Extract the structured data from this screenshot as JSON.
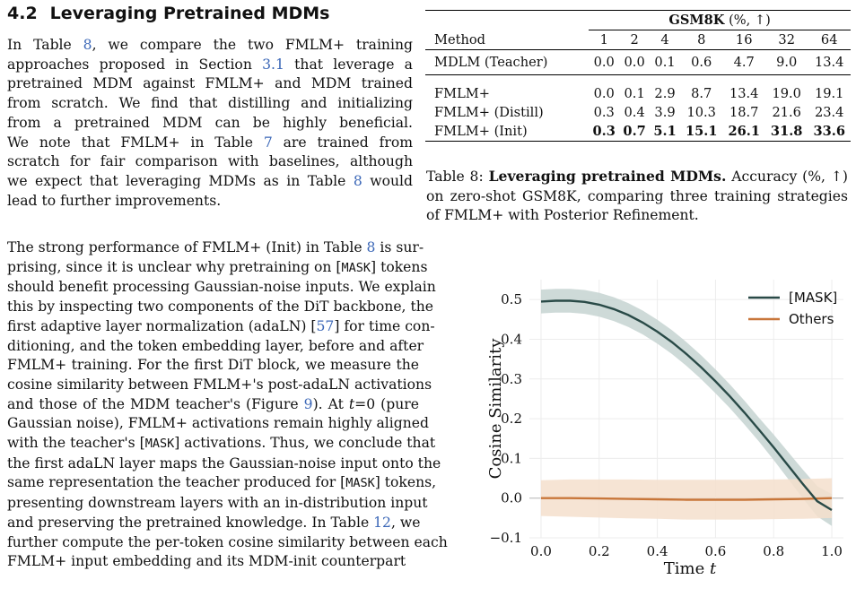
{
  "section": {
    "number": "4.2",
    "title": "Leveraging Pretrained MDMs"
  },
  "paragraph1": [
    {
      "parts": [
        {
          "t": "In Table "
        },
        {
          "t": "8",
          "link": true
        },
        {
          "t": ", we compare the two FMLM+ training"
        }
      ]
    },
    {
      "parts": [
        {
          "t": "approaches proposed in Section "
        },
        {
          "t": "3.1",
          "link": true
        },
        {
          "t": " that leverage a"
        }
      ]
    },
    {
      "parts": [
        {
          "t": "pretrained MDM against FMLM+ and MDM trained"
        }
      ]
    },
    {
      "parts": [
        {
          "t": "from scratch. We find that distilling and initializing"
        }
      ]
    },
    {
      "parts": [
        {
          "t": "from a pretrained MDM can be highly beneficial."
        }
      ]
    },
    {
      "parts": [
        {
          "t": "We note that FMLM+ in Table "
        },
        {
          "t": "7",
          "link": true
        },
        {
          "t": " are trained from"
        }
      ]
    },
    {
      "parts": [
        {
          "t": "scratch for fair comparison with baselines, although"
        }
      ]
    },
    {
      "parts": [
        {
          "t": "we expect that leveraging MDMs as in Table "
        },
        {
          "t": "8",
          "link": true
        },
        {
          "t": " would"
        }
      ]
    },
    {
      "parts": [
        {
          "t": "lead to further improvements."
        }
      ],
      "last": true
    }
  ],
  "paragraph2": [
    {
      "parts": [
        {
          "t": "The strong performance of FMLM+ (Init) in Table "
        },
        {
          "t": "8",
          "link": true
        },
        {
          "t": " is sur-"
        }
      ]
    },
    {
      "parts": [
        {
          "t": "prising, since it is unclear why pretraining on ["
        },
        {
          "t": "MASK",
          "mono": true
        },
        {
          "t": "] tokens"
        }
      ]
    },
    {
      "parts": [
        {
          "t": "should benefit processing Gaussian-noise inputs. We explain"
        }
      ]
    },
    {
      "parts": [
        {
          "t": "this by inspecting two components of the DiT backbone, the"
        }
      ]
    },
    {
      "parts": [
        {
          "t": "first adaptive layer normalization (adaLN) ["
        },
        {
          "t": "57",
          "link": true
        },
        {
          "t": "] for time con-"
        }
      ]
    },
    {
      "parts": [
        {
          "t": "ditioning, and the token embedding layer, before and after"
        }
      ]
    },
    {
      "parts": [
        {
          "t": "FMLM+ training. For the first DiT block, we measure the"
        }
      ]
    },
    {
      "parts": [
        {
          "t": "cosine similarity between FMLM+'s post-adaLN activations"
        }
      ]
    },
    {
      "parts": [
        {
          "t": "and those of the MDM teacher's (Figure "
        },
        {
          "t": "9",
          "link": true
        },
        {
          "t": "). At "
        },
        {
          "t": "t",
          "italic": true
        },
        {
          "t": "=0 (pure"
        }
      ]
    },
    {
      "parts": [
        {
          "t": "Gaussian noise), FMLM+ activations remain highly aligned"
        }
      ]
    },
    {
      "parts": [
        {
          "t": "with the teacher's ["
        },
        {
          "t": "MASK",
          "mono": true
        },
        {
          "t": "] activations. Thus, we conclude that"
        }
      ]
    },
    {
      "parts": [
        {
          "t": "the first adaLN layer maps the Gaussian-noise input onto the"
        }
      ]
    },
    {
      "parts": [
        {
          "t": "same representation the teacher produced for ["
        },
        {
          "t": "MASK",
          "mono": true
        },
        {
          "t": "] tokens,"
        }
      ]
    },
    {
      "parts": [
        {
          "t": "presenting downstream layers with an in-distribution input"
        }
      ]
    },
    {
      "parts": [
        {
          "t": "and preserving the pretrained knowledge. In Table "
        },
        {
          "t": "12",
          "link": true
        },
        {
          "t": ", we"
        }
      ]
    },
    {
      "parts": [
        {
          "t": "further compute the per-token cosine similarity between each"
        }
      ]
    },
    {
      "parts": [
        {
          "t": "FMLM+ input embedding and its MDM-init counterpart"
        }
      ],
      "last": true
    }
  ],
  "table": {
    "group_header": "GSM8K",
    "group_header_suffix": "(%, ↑)",
    "method_header": "Method",
    "columns": [
      "1",
      "2",
      "4",
      "8",
      "16",
      "32",
      "64"
    ],
    "teacher": {
      "method": "MDLM (Teacher)",
      "values": [
        "0.0",
        "0.0",
        "0.1",
        "0.6",
        "4.7",
        "9.0",
        "13.4"
      ]
    },
    "rows": [
      {
        "method": "FMLM+",
        "values": [
          "0.0",
          "0.1",
          "2.9",
          "8.7",
          "13.4",
          "19.0",
          "19.1"
        ],
        "bold": false
      },
      {
        "method": "FMLM+ (Distill)",
        "values": [
          "0.3",
          "0.4",
          "3.9",
          "10.3",
          "18.7",
          "21.6",
          "23.4"
        ],
        "bold": false
      },
      {
        "method": "FMLM+ (Init)",
        "values": [
          "0.3",
          "0.7",
          "5.1",
          "15.1",
          "26.1",
          "31.8",
          "33.6"
        ],
        "bold": true
      }
    ]
  },
  "caption": {
    "label": "Table 8:",
    "bold_title": "Leveraging pretrained MDMs.",
    "text": "Accuracy (%, ↑) on zero-shot GSM8K, comparing three training strategies of FMLM+ with Posterior Refinement."
  },
  "chart_data": {
    "type": "line",
    "xlabel": "Time",
    "xlabel_italic": "t",
    "ylabel": "Cosine Similarity",
    "xlim": [
      -0.04,
      1.04
    ],
    "ylim": [
      -0.1,
      0.55
    ],
    "xticks": [
      "0.0",
      "0.2",
      "0.4",
      "0.6",
      "0.8",
      "1.0"
    ],
    "yticks": [
      "−0.1",
      "0.0",
      "0.1",
      "0.2",
      "0.3",
      "0.4",
      "0.5"
    ],
    "grid": true,
    "legend_position": "top-right",
    "series": [
      {
        "name": "[MASK]",
        "color": "#294a47",
        "band_color": "#c5d3d1",
        "x": [
          0.0,
          0.05,
          0.1,
          0.15,
          0.2,
          0.25,
          0.3,
          0.35,
          0.4,
          0.45,
          0.5,
          0.55,
          0.6,
          0.65,
          0.7,
          0.75,
          0.8,
          0.85,
          0.9,
          0.95,
          1.0
        ],
        "y": [
          0.495,
          0.497,
          0.497,
          0.494,
          0.487,
          0.476,
          0.461,
          0.442,
          0.419,
          0.393,
          0.363,
          0.33,
          0.294,
          0.256,
          0.215,
          0.172,
          0.128,
          0.082,
          0.036,
          -0.008,
          -0.03
        ],
        "band": [
          0.03,
          0.03,
          0.03,
          0.03,
          0.03,
          0.03,
          0.03,
          0.03,
          0.03,
          0.03,
          0.03,
          0.03,
          0.03,
          0.03,
          0.03,
          0.03,
          0.032,
          0.034,
          0.036,
          0.038,
          0.04
        ]
      },
      {
        "name": "Others",
        "color": "#c8763a",
        "band_color": "#f5dfcd",
        "x": [
          0.0,
          0.1,
          0.2,
          0.3,
          0.4,
          0.5,
          0.6,
          0.7,
          0.8,
          0.9,
          1.0
        ],
        "y": [
          0.0,
          0.0,
          -0.001,
          -0.002,
          -0.003,
          -0.004,
          -0.004,
          -0.004,
          -0.003,
          -0.002,
          0.0
        ],
        "band": [
          0.045,
          0.047,
          0.048,
          0.049,
          0.049,
          0.05,
          0.05,
          0.05,
          0.05,
          0.05,
          0.05
        ]
      }
    ]
  }
}
